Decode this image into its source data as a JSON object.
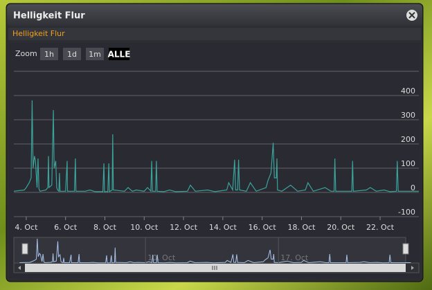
{
  "window": {
    "title": "Helligkeit Flur"
  },
  "chart_data": {
    "type": "line",
    "title": "Helligkeit Flur",
    "zoom_label": "Zoom",
    "zoom_buttons": [
      "1h",
      "1d",
      "1m",
      "ALLE"
    ],
    "zoom_selected": "ALLE",
    "series": [
      {
        "name": "Helligkeit Flur",
        "color": "#3aa39a",
        "x": [
          3.37,
          3.9,
          4.0,
          4.15,
          4.25,
          4.3,
          4.35,
          4.42,
          4.47,
          4.55,
          4.6,
          4.65,
          4.7,
          5.0,
          5.1,
          5.13,
          5.16,
          5.3,
          5.38,
          5.42,
          5.5,
          5.55,
          5.6,
          5.66,
          5.69,
          5.72,
          6.0,
          6.08,
          6.1,
          6.45,
          6.5,
          6.53,
          7.0,
          7.24,
          7.5,
          7.9,
          7.95,
          7.98,
          8.15,
          8.2,
          8.23,
          8.37,
          8.4,
          8.43,
          9.0,
          9.18,
          9.4,
          9.6,
          10.0,
          10.17,
          10.34,
          10.38,
          10.42,
          10.58,
          10.62,
          10.66,
          11.0,
          11.29,
          11.6,
          12.2,
          12.35,
          12.6,
          13.23,
          13.6,
          14.2,
          14.3,
          14.5,
          14.6,
          14.65,
          14.75,
          14.8,
          14.85,
          15.2,
          15.4,
          15.7,
          16.2,
          16.3,
          16.45,
          16.56,
          16.62,
          16.72,
          16.75,
          16.78,
          17.0,
          17.45,
          17.8,
          18.2,
          18.33,
          18.6,
          19.2,
          19.5,
          19.66,
          19.7,
          19.74,
          20.3,
          20.56,
          20.6,
          20.64,
          21.3,
          21.5,
          21.8,
          22.2,
          22.5,
          22.83,
          22.87,
          22.92,
          23.4,
          23.97
        ],
        "values": [
          5,
          10,
          20,
          40,
          60,
          380,
          100,
          150,
          130,
          20,
          140,
          15,
          5,
          10,
          20,
          150,
          20,
          30,
          340,
          100,
          130,
          20,
          10,
          5,
          80,
          5,
          5,
          130,
          5,
          5,
          140,
          5,
          5,
          10,
          3,
          3,
          120,
          3,
          3,
          120,
          3,
          10,
          240,
          10,
          5,
          20,
          5,
          10,
          5,
          20,
          5,
          130,
          5,
          5,
          130,
          5,
          3,
          10,
          3,
          5,
          30,
          5,
          10,
          3,
          10,
          40,
          10,
          135,
          10,
          10,
          135,
          10,
          5,
          40,
          5,
          20,
          50,
          80,
          205,
          60,
          60,
          140,
          10,
          5,
          30,
          5,
          10,
          40,
          5,
          20,
          5,
          5,
          140,
          5,
          5,
          5,
          130,
          5,
          10,
          20,
          5,
          10,
          3,
          5,
          130,
          5,
          5,
          5
        ]
      }
    ],
    "xlim": [
      3.37,
      23.97
    ],
    "xticks": [
      {
        "value": 4,
        "label": "4. Oct"
      },
      {
        "value": 6,
        "label": "6. Oct"
      },
      {
        "value": 8,
        "label": "8. Oct"
      },
      {
        "value": 10,
        "label": "10. Oct"
      },
      {
        "value": 12,
        "label": "12. Oct"
      },
      {
        "value": 14,
        "label": "14. Oct"
      },
      {
        "value": 16,
        "label": "16. Oct"
      },
      {
        "value": 18,
        "label": "18. Oct"
      },
      {
        "value": 20,
        "label": "20. Oct"
      },
      {
        "value": 22,
        "label": "22. Oct"
      }
    ],
    "ylim": [
      -100,
      500
    ],
    "yticks": [
      -100,
      0,
      100,
      200,
      300,
      400
    ],
    "grid": true,
    "navigator_xlim": [
      3.65,
      23.7
    ],
    "navigator_xticks": [
      {
        "value": 10,
        "label": "10. Oct"
      },
      {
        "value": 17,
        "label": "17. Oct"
      }
    ]
  }
}
